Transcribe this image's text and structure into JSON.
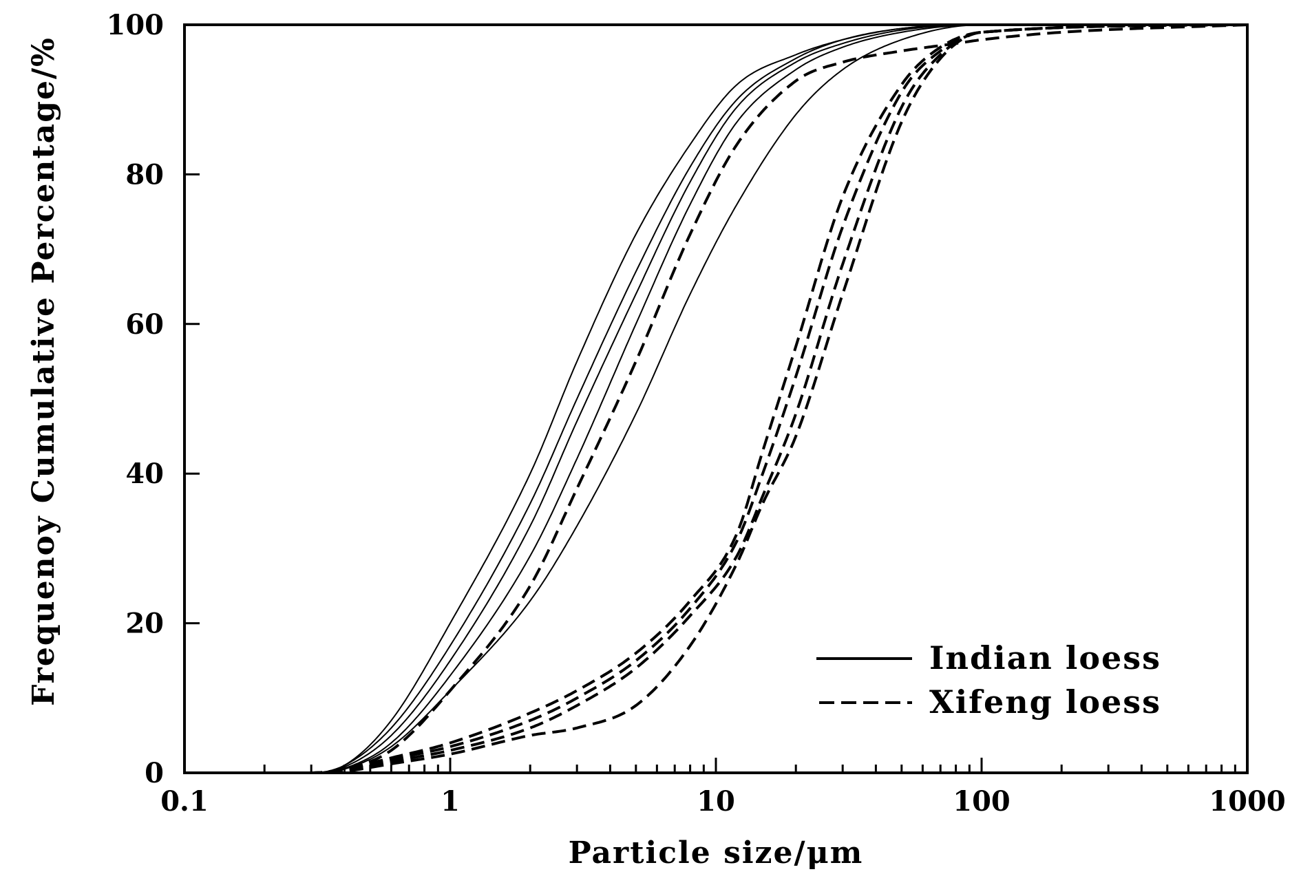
{
  "chart_data": {
    "type": "line",
    "xscale": "log",
    "xlim": [
      0.1,
      1000
    ],
    "ylim": [
      0,
      100
    ],
    "xlabel": "Particle size/μm",
    "ylabel": "Frequenoy Cumulative Percentage/%",
    "x_ticks": [
      "0.1",
      "1",
      "10",
      "100",
      "1000"
    ],
    "y_ticks": [
      "0",
      "20",
      "40",
      "60",
      "80",
      "100"
    ],
    "grid": false,
    "legend_position": "bottom-right",
    "legend": [
      {
        "label": "Indian loess",
        "style": "solid"
      },
      {
        "label": "Xifeng loess",
        "style": "dashed"
      }
    ],
    "series": [
      {
        "group": "Indian loess",
        "style": "solid",
        "x": [
          0.1,
          0.3,
          0.4,
          0.6,
          1,
          2,
          3,
          5,
          8,
          12,
          20,
          30,
          50,
          100,
          1000
        ],
        "y": [
          0,
          0,
          1,
          7,
          20,
          40,
          55,
          72,
          84,
          92,
          96,
          98,
          99.5,
          100,
          100
        ]
      },
      {
        "group": "Indian loess",
        "style": "solid",
        "x": [
          0.1,
          0.3,
          0.4,
          0.6,
          1,
          2,
          3,
          5,
          8,
          12,
          20,
          30,
          50,
          100,
          1000
        ],
        "y": [
          0,
          0,
          1,
          6,
          17,
          36,
          50,
          67,
          81,
          90,
          95.5,
          98,
          99.5,
          100,
          100
        ]
      },
      {
        "group": "Indian loess",
        "style": "solid",
        "x": [
          0.1,
          0.3,
          0.4,
          0.6,
          1,
          2,
          3,
          5,
          8,
          12,
          20,
          30,
          50,
          100,
          1000
        ],
        "y": [
          0,
          0,
          0.8,
          5,
          15,
          33,
          47,
          64,
          79,
          89,
          95,
          97.5,
          99.3,
          100,
          100
        ]
      },
      {
        "group": "Indian loess",
        "style": "solid",
        "x": [
          0.1,
          0.3,
          0.4,
          0.6,
          1,
          2,
          3,
          5,
          8,
          12,
          20,
          30,
          50,
          100,
          1000
        ],
        "y": [
          0,
          0,
          0.6,
          4,
          13,
          29,
          42,
          60,
          76,
          87,
          94,
          97,
          99,
          100,
          100
        ]
      },
      {
        "group": "Indian loess",
        "style": "solid",
        "x": [
          0.1,
          0.3,
          0.4,
          0.6,
          1,
          2,
          3,
          5,
          8,
          12,
          20,
          30,
          50,
          100,
          1000
        ],
        "y": [
          0,
          0,
          0.5,
          3.5,
          11,
          23,
          33,
          48,
          64,
          76,
          88,
          94,
          98,
          100,
          100
        ]
      },
      {
        "group": "Xifeng loess",
        "style": "dashed",
        "x": [
          0.1,
          0.3,
          0.4,
          0.6,
          1,
          2,
          3,
          5,
          8,
          12,
          15,
          20,
          30,
          50,
          70,
          100,
          1000
        ],
        "y": [
          0,
          0,
          0.5,
          2,
          4,
          8,
          11,
          16,
          23,
          32,
          43,
          57,
          77,
          92,
          97,
          99,
          100
        ]
      },
      {
        "group": "Xifeng loess",
        "style": "dashed",
        "x": [
          0.1,
          0.3,
          0.4,
          0.6,
          1,
          2,
          3,
          5,
          8,
          12,
          15,
          20,
          30,
          50,
          70,
          100,
          1000
        ],
        "y": [
          0,
          0,
          0.4,
          1.8,
          3.5,
          7,
          10,
          15,
          22,
          31,
          40,
          53,
          73,
          91,
          96.5,
          99,
          100
        ]
      },
      {
        "group": "Xifeng loess",
        "style": "dashed",
        "x": [
          0.1,
          0.3,
          0.4,
          0.6,
          1,
          2,
          3,
          5,
          8,
          12,
          15,
          20,
          30,
          50,
          70,
          100,
          1000
        ],
        "y": [
          0,
          0,
          0.3,
          1.5,
          3,
          6,
          9,
          14,
          21,
          29,
          37,
          48,
          68,
          89,
          96,
          99,
          100
        ]
      },
      {
        "group": "Xifeng loess",
        "style": "dashed",
        "x": [
          0.1,
          0.3,
          0.4,
          0.6,
          1,
          2,
          3,
          5,
          8,
          12,
          15,
          20,
          30,
          50,
          70,
          100,
          1000
        ],
        "y": [
          0,
          0,
          0.2,
          1.2,
          2.5,
          5,
          6,
          9,
          17,
          28,
          36,
          45,
          64,
          87,
          95.5,
          99,
          100
        ]
      },
      {
        "group": "Xifeng loess",
        "style": "dashed",
        "x": [
          0.1,
          0.3,
          0.4,
          0.6,
          1,
          2,
          3,
          5,
          8,
          12,
          20,
          30,
          50,
          80,
          100,
          200,
          1000
        ],
        "y": [
          0,
          0,
          0.5,
          3,
          11,
          25,
          38,
          55,
          72,
          84,
          92.5,
          95,
          96.5,
          97.5,
          98,
          99,
          100
        ]
      }
    ]
  }
}
